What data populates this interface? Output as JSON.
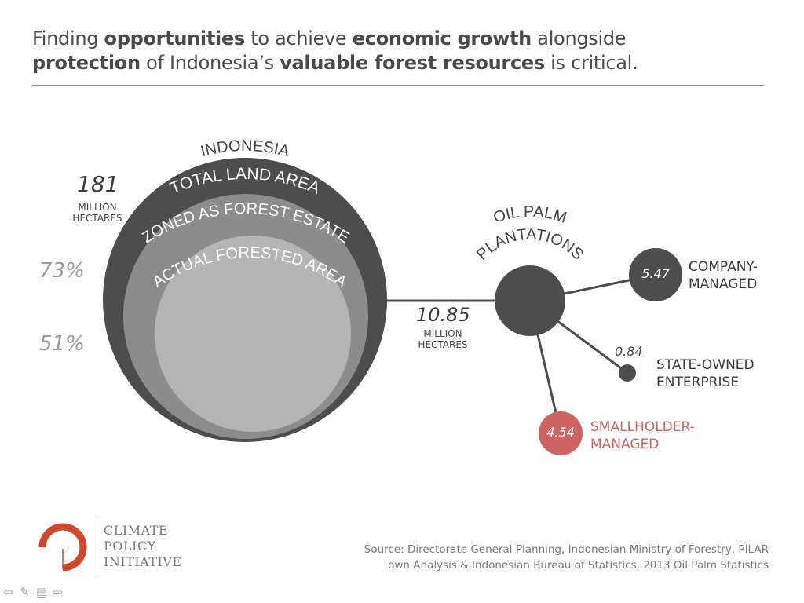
{
  "title": {
    "parts": [
      {
        "text": "Finding ",
        "bold": false
      },
      {
        "text": "opportunities",
        "bold": true
      },
      {
        "text": " to achieve ",
        "bold": false
      },
      {
        "text": "economic growth",
        "bold": true
      },
      {
        "text": " alongside",
        "bold": false
      },
      {
        "text": "protection",
        "bold": true
      },
      {
        "text": " of Indonesia’s ",
        "bold": false
      },
      {
        "text": "valuable forest resources",
        "bold": true
      },
      {
        "text": " is critical.",
        "bold": false
      }
    ]
  },
  "indonesia": {
    "heading": "INDONESIA",
    "rings": [
      "TOTAL LAND AREA",
      "ZONED AS FOREST ESTATE",
      "ACTUAL FORESTED AREA"
    ],
    "total_value": "181",
    "total_unit_line1": "MILLION",
    "total_unit_line2": "HECTARES",
    "forest_estate_pct": "73%",
    "forested_pct": "51%"
  },
  "oil_palm": {
    "heading_line1": "OIL PALM",
    "heading_line2": "PLANTATIONS",
    "total_value": "10.85",
    "unit_line1": "MILLION",
    "unit_line2": "HECTARES",
    "segments": [
      {
        "value": "5.47",
        "line1": "COMPANY-",
        "line2": "MANAGED"
      },
      {
        "value": "0.84",
        "line1": "STATE-OWNED",
        "line2": "ENTERPRISE"
      },
      {
        "value": "4.54",
        "line1": "SMALLHOLDER-",
        "line2": "MANAGED"
      }
    ]
  },
  "colors": {
    "dark": "#4d4d4d",
    "mid": "#8c8c8c",
    "light": "#b5b5b5",
    "accent": "#cd6461",
    "logo": "#d2472a"
  },
  "source": {
    "line1": "Source: Directorate General Planning, Indonesian Ministry of Forestry, PILAR",
    "line2": "own Analysis & Indonesian Bureau of Statistics, 2013 Oil Palm Statistics"
  },
  "logo": {
    "line1": "CLIMATE",
    "line2": "POLICY",
    "line3": "INITIATIVE"
  },
  "nav_icons": [
    "arrow-left-icon",
    "pen-icon",
    "menu-icon",
    "arrow-right-icon"
  ]
}
